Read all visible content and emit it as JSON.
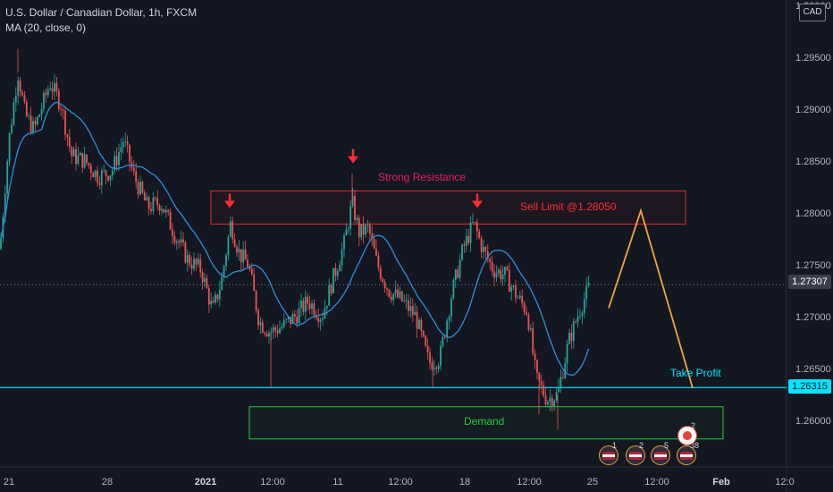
{
  "chart_title": "U.S. Dollar / Canadian Dollar, 1h, FXCM",
  "indicator": "MA (20, close, 0)",
  "currency": "CAD",
  "colors": {
    "background": "#131722",
    "up": "#26a69a",
    "down": "#ef5350",
    "ma": "#2e8fd6",
    "resistance": "#d32f2f",
    "demand": "#27c93f",
    "projection": "#f5a33c",
    "take_profit_line": "#00e5ff",
    "annotation_pink": "#e91e63",
    "annotation_red": "#ff2d2d"
  },
  "annotations": {
    "strong_resistance": "Strong Resistance",
    "sell_limit": "Sell Limit @1.28050",
    "demand": "Demand",
    "take_profit": "Take Profit"
  },
  "price_tags": {
    "current": "1.27307",
    "take_profit": "1.26315"
  },
  "events": [
    {
      "count": "1"
    },
    {
      "count": "2"
    },
    {
      "count": "5"
    },
    {
      "count": "38"
    },
    {
      "count": "2"
    }
  ],
  "chart_data": {
    "type": "candlestick",
    "symbol": "USDCAD",
    "interval": "1h",
    "x_ticks": [
      "21",
      "28",
      "2021",
      "12:00",
      "11",
      "12:00",
      "18",
      "12:00",
      "25",
      "12:00",
      "Feb",
      "12:0"
    ],
    "y_ticks": [
      "1.30000",
      "1.29500",
      "1.29000",
      "1.28500",
      "1.28000",
      "1.27500",
      "1.27000",
      "1.26500",
      "1.26000"
    ],
    "ylim": [
      1.2555,
      1.3005
    ],
    "current_price": 1.27307,
    "take_profit_level": 1.26315,
    "resistance_zone": [
      1.2789,
      1.2821
    ],
    "demand_zone": [
      1.2582,
      1.2613
    ],
    "path": [
      {
        "x": 0,
        "y": 1.2765
      },
      {
        "x": 10,
        "y": 1.287
      },
      {
        "x": 20,
        "y": 1.2935
      },
      {
        "x": 28,
        "y": 1.2895
      },
      {
        "x": 38,
        "y": 1.288
      },
      {
        "x": 48,
        "y": 1.2905
      },
      {
        "x": 56,
        "y": 1.2925
      },
      {
        "x": 68,
        "y": 1.2905
      },
      {
        "x": 80,
        "y": 1.2855
      },
      {
        "x": 95,
        "y": 1.285
      },
      {
        "x": 110,
        "y": 1.2835
      },
      {
        "x": 125,
        "y": 1.284
      },
      {
        "x": 138,
        "y": 1.287
      },
      {
        "x": 150,
        "y": 1.2835
      },
      {
        "x": 165,
        "y": 1.2805
      },
      {
        "x": 180,
        "y": 1.281
      },
      {
        "x": 195,
        "y": 1.278
      },
      {
        "x": 210,
        "y": 1.2755
      },
      {
        "x": 225,
        "y": 1.2745
      },
      {
        "x": 238,
        "y": 1.2705
      },
      {
        "x": 248,
        "y": 1.2735
      },
      {
        "x": 258,
        "y": 1.279
      },
      {
        "x": 268,
        "y": 1.276
      },
      {
        "x": 278,
        "y": 1.275
      },
      {
        "x": 290,
        "y": 1.2695
      },
      {
        "x": 302,
        "y": 1.2685
      },
      {
        "x": 315,
        "y": 1.269
      },
      {
        "x": 330,
        "y": 1.27
      },
      {
        "x": 345,
        "y": 1.2715
      },
      {
        "x": 360,
        "y": 1.27
      },
      {
        "x": 372,
        "y": 1.2735
      },
      {
        "x": 385,
        "y": 1.277
      },
      {
        "x": 394,
        "y": 1.281
      },
      {
        "x": 402,
        "y": 1.278
      },
      {
        "x": 412,
        "y": 1.2785
      },
      {
        "x": 422,
        "y": 1.275
      },
      {
        "x": 435,
        "y": 1.2725
      },
      {
        "x": 450,
        "y": 1.2715
      },
      {
        "x": 465,
        "y": 1.27
      },
      {
        "x": 480,
        "y": 1.2655
      },
      {
        "x": 492,
        "y": 1.266
      },
      {
        "x": 505,
        "y": 1.272
      },
      {
        "x": 518,
        "y": 1.2765
      },
      {
        "x": 530,
        "y": 1.279
      },
      {
        "x": 540,
        "y": 1.2765
      },
      {
        "x": 552,
        "y": 1.2745
      },
      {
        "x": 565,
        "y": 1.274
      },
      {
        "x": 578,
        "y": 1.272
      },
      {
        "x": 590,
        "y": 1.2705
      },
      {
        "x": 600,
        "y": 1.264
      },
      {
        "x": 612,
        "y": 1.262
      },
      {
        "x": 624,
        "y": 1.2625
      },
      {
        "x": 636,
        "y": 1.2675
      },
      {
        "x": 648,
        "y": 1.2705
      },
      {
        "x": 660,
        "y": 1.273
      }
    ],
    "series": [
      {
        "name": "MA (20, close, 0)"
      }
    ],
    "projection": [
      {
        "x": 681,
        "y": 1.2708
      },
      {
        "x": 717,
        "y": 1.2802
      },
      {
        "x": 775,
        "y": 1.2631
      }
    ],
    "arrows_at": [
      1.2808,
      1.2851,
      1.2808
    ]
  }
}
